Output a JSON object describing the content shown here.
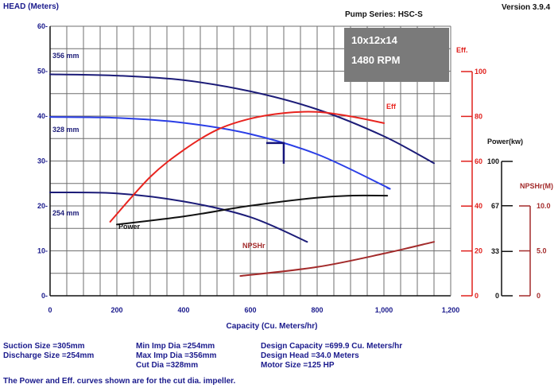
{
  "header": {
    "head_label": "HEAD (Meters)",
    "pump_series": "Pump Series: HSC-S",
    "version": "Version 3.9.4"
  },
  "model_box": {
    "model": "10x12x14",
    "speed": "1480 RPM"
  },
  "chart_data": {
    "type": "line",
    "xlabel": "Capacity (Cu. Meters/hr)",
    "ylabel": "HEAD (Meters)",
    "xlim": [
      0,
      1200
    ],
    "ylim": [
      0,
      60
    ],
    "x_ticks": [
      "0",
      "200",
      "400",
      "600",
      "800",
      "1,000",
      "1,200"
    ],
    "y_ticks": [
      "0-",
      "10-",
      "20-",
      "30-",
      "40-",
      "50-",
      "60-"
    ],
    "grid": true,
    "series": [
      {
        "name": "356 mm",
        "axis": "head",
        "color": "#1c1c78",
        "points": [
          [
            0,
            49.3
          ],
          [
            200,
            49
          ],
          [
            400,
            48
          ],
          [
            600,
            45.5
          ],
          [
            800,
            41.5
          ],
          [
            1000,
            35.5
          ],
          [
            1150,
            29.5
          ]
        ]
      },
      {
        "name": "328 mm",
        "axis": "head",
        "color": "#2a3ee6",
        "points": [
          [
            0,
            39.8
          ],
          [
            200,
            39.6
          ],
          [
            400,
            38.5
          ],
          [
            600,
            36
          ],
          [
            800,
            31.5
          ],
          [
            1000,
            24.5
          ],
          [
            1010,
            24
          ]
        ]
      },
      {
        "name": "254 mm",
        "axis": "head",
        "color": "#1c1c78",
        "points": [
          [
            0,
            23
          ],
          [
            200,
            22.8
          ],
          [
            400,
            21
          ],
          [
            600,
            17.5
          ],
          [
            770,
            12
          ]
        ]
      },
      {
        "name": "Eff",
        "axis": "eff",
        "color": "#e8241f",
        "points": [
          [
            180,
            33
          ],
          [
            300,
            53
          ],
          [
            400,
            65
          ],
          [
            500,
            74
          ],
          [
            600,
            79
          ],
          [
            700,
            81.5
          ],
          [
            800,
            82
          ],
          [
            900,
            80
          ],
          [
            1000,
            77
          ]
        ]
      },
      {
        "name": "Power",
        "axis": "power",
        "color": "#111111",
        "points": [
          [
            200,
            53
          ],
          [
            400,
            59
          ],
          [
            600,
            67
          ],
          [
            800,
            73
          ],
          [
            900,
            74.5
          ],
          [
            1010,
            74.5
          ]
        ]
      },
      {
        "name": "NPSHr",
        "axis": "npshr",
        "color": "#a32b2b",
        "points": [
          [
            570,
            2.2
          ],
          [
            800,
            3.2
          ],
          [
            1000,
            4.7
          ],
          [
            1150,
            6.0
          ]
        ]
      }
    ],
    "eff_axis": {
      "label": "Eff.",
      "ticks": [
        "100",
        "80",
        "60",
        "40",
        "20",
        "0"
      ],
      "range": [
        0,
        100
      ],
      "color": "#e0201c"
    },
    "power_axis": {
      "label": "Power(kw)",
      "ticks": [
        "100",
        "67",
        "33",
        "0"
      ],
      "range": [
        0,
        100
      ]
    },
    "npshr_axis": {
      "label": "NPSHr(M)",
      "ticks": [
        "10.0",
        "5.0",
        "0"
      ],
      "range": [
        0,
        10
      ]
    },
    "labels": {
      "d356": "356 mm",
      "d328": "328 mm",
      "d254": "254 mm",
      "eff": "Eff",
      "power": "Power",
      "npshr": "NPSHr"
    },
    "design_point": {
      "capacity": 699.9,
      "head": 34.0
    }
  },
  "info": {
    "suction": "Suction Size =305mm",
    "discharge": "Discharge Size =254mm",
    "min_imp": "Min Imp Dia =254mm",
    "max_imp": "Max Imp Dia =356mm",
    "cut_dia": "Cut Dia =328mm",
    "design_capacity": "Design Capacity =699.9 Cu. Meters/hr",
    "design_head": "Design Head =34.0 Meters",
    "motor": "Motor Size =125 HP",
    "note": "The Power and Eff. curves shown are for the cut dia. impeller."
  }
}
